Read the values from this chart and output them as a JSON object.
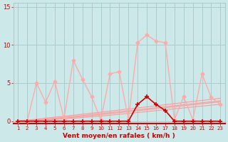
{
  "x": [
    1,
    2,
    3,
    4,
    5,
    6,
    7,
    8,
    9,
    10,
    11,
    12,
    13,
    14,
    15,
    16,
    17,
    18,
    19,
    20,
    21,
    22,
    23
  ],
  "rafales": [
    0.0,
    0.0,
    5.0,
    2.5,
    5.2,
    0.3,
    8.0,
    5.5,
    3.2,
    0.2,
    6.2,
    6.5,
    0.2,
    10.3,
    11.3,
    10.5,
    10.3,
    0.2,
    3.2,
    0.2,
    6.2,
    3.1,
    2.2
  ],
  "vent_moyen": [
    0.0,
    0.0,
    0.0,
    0.0,
    0.0,
    0.0,
    0.0,
    0.0,
    0.0,
    0.0,
    0.0,
    0.0,
    0.0,
    2.2,
    3.2,
    2.2,
    1.4,
    0.0,
    0.0,
    0.0,
    0.0,
    0.0,
    0.0
  ],
  "trend1": [
    0.05,
    0.15,
    0.25,
    0.4,
    0.52,
    0.65,
    0.78,
    0.92,
    1.05,
    1.18,
    1.32,
    1.46,
    1.6,
    1.74,
    1.88,
    2.02,
    2.16,
    2.3,
    2.44,
    2.58,
    2.72,
    2.86,
    3.0
  ],
  "trend2": [
    0.02,
    0.1,
    0.18,
    0.28,
    0.38,
    0.5,
    0.62,
    0.75,
    0.88,
    1.0,
    1.12,
    1.25,
    1.38,
    1.51,
    1.64,
    1.77,
    1.9,
    2.03,
    2.16,
    2.29,
    2.42,
    2.55,
    2.68
  ],
  "trend3": [
    0.01,
    0.07,
    0.14,
    0.22,
    0.3,
    0.4,
    0.5,
    0.62,
    0.74,
    0.86,
    0.98,
    1.11,
    1.24,
    1.37,
    1.5,
    1.63,
    1.76,
    1.89,
    2.02,
    2.15,
    2.28,
    2.41,
    2.54
  ],
  "trend4": [
    0.0,
    0.04,
    0.1,
    0.16,
    0.22,
    0.3,
    0.38,
    0.48,
    0.58,
    0.68,
    0.78,
    0.9,
    1.02,
    1.14,
    1.26,
    1.38,
    1.5,
    1.62,
    1.74,
    1.86,
    1.98,
    2.1,
    2.22
  ],
  "bg_color": "#cce8e8",
  "grid_color": "#aacccc",
  "color_rafales": "#ffaaaa",
  "color_vent": "#cc0000",
  "color_trend": "#ff9999",
  "xlabel": "Vent moyen/en rafales ( km/h )",
  "ylim": [
    -0.3,
    15.5
  ],
  "yticks": [
    0,
    5,
    10,
    15
  ]
}
